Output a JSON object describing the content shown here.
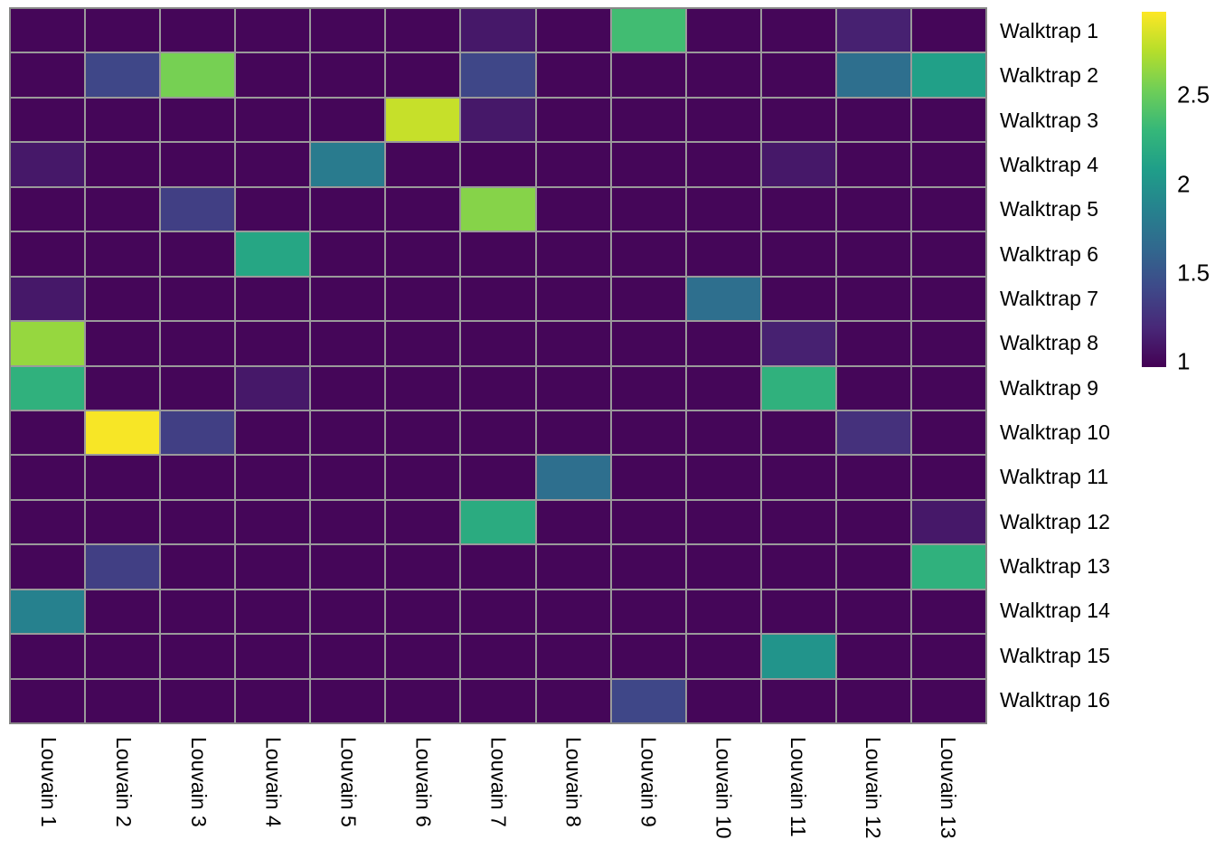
{
  "chart_data": {
    "type": "heatmap",
    "title": "",
    "xlabel": "",
    "ylabel": "",
    "x_axis_labels": [
      "Louvain 1",
      "Louvain 2",
      "Louvain 3",
      "Louvain 4",
      "Louvain 5",
      "Louvain 6",
      "Louvain 7",
      "Louvain 8",
      "Louvain 9",
      "Louvain 10",
      "Louvain 11",
      "Louvain 12",
      "Louvain 13"
    ],
    "y_axis_labels": [
      "Walktrap 1",
      "Walktrap 2",
      "Walktrap 3",
      "Walktrap 4",
      "Walktrap 5",
      "Walktrap 6",
      "Walktrap 7",
      "Walktrap 8",
      "Walktrap 9",
      "Walktrap 10",
      "Walktrap 11",
      "Walktrap 12",
      "Walktrap 13",
      "Walktrap 14",
      "Walktrap 15",
      "Walktrap 16"
    ],
    "default_value": 1.0,
    "cells": [
      {
        "row": 1,
        "col": 7,
        "value": 1.1
      },
      {
        "row": 1,
        "col": 9,
        "value": 2.35
      },
      {
        "row": 1,
        "col": 12,
        "value": 1.15
      },
      {
        "row": 2,
        "col": 2,
        "value": 1.4
      },
      {
        "row": 2,
        "col": 3,
        "value": 2.55
      },
      {
        "row": 2,
        "col": 7,
        "value": 1.4
      },
      {
        "row": 2,
        "col": 12,
        "value": 1.7
      },
      {
        "row": 2,
        "col": 13,
        "value": 2.1
      },
      {
        "row": 3,
        "col": 6,
        "value": 2.8
      },
      {
        "row": 3,
        "col": 7,
        "value": 1.1
      },
      {
        "row": 4,
        "col": 1,
        "value": 1.1
      },
      {
        "row": 4,
        "col": 5,
        "value": 1.8
      },
      {
        "row": 4,
        "col": 11,
        "value": 1.1
      },
      {
        "row": 5,
        "col": 3,
        "value": 1.35
      },
      {
        "row": 5,
        "col": 7,
        "value": 2.6
      },
      {
        "row": 6,
        "col": 4,
        "value": 2.15
      },
      {
        "row": 7,
        "col": 1,
        "value": 1.1
      },
      {
        "row": 7,
        "col": 10,
        "value": 1.7
      },
      {
        "row": 8,
        "col": 1,
        "value": 2.65
      },
      {
        "row": 8,
        "col": 11,
        "value": 1.15
      },
      {
        "row": 9,
        "col": 1,
        "value": 2.25
      },
      {
        "row": 9,
        "col": 4,
        "value": 1.1
      },
      {
        "row": 9,
        "col": 11,
        "value": 2.25
      },
      {
        "row": 10,
        "col": 2,
        "value": 2.95
      },
      {
        "row": 10,
        "col": 3,
        "value": 1.35
      },
      {
        "row": 10,
        "col": 12,
        "value": 1.25
      },
      {
        "row": 11,
        "col": 8,
        "value": 1.7
      },
      {
        "row": 12,
        "col": 7,
        "value": 2.2
      },
      {
        "row": 12,
        "col": 13,
        "value": 1.1
      },
      {
        "row": 13,
        "col": 2,
        "value": 1.35
      },
      {
        "row": 13,
        "col": 13,
        "value": 2.25
      },
      {
        "row": 14,
        "col": 1,
        "value": 1.85
      },
      {
        "row": 15,
        "col": 11,
        "value": 2.0
      },
      {
        "row": 16,
        "col": 9,
        "value": 1.4
      }
    ],
    "value_scale": {
      "palette": "viridis",
      "domain": [
        0.97,
        2.97
      ],
      "colors": [
        "#440154",
        "#482878",
        "#3e4989",
        "#31688e",
        "#26828e",
        "#1f9e89",
        "#35b779",
        "#6ece58",
        "#b5de2b",
        "#fde725"
      ]
    },
    "colorbar": {
      "position": "right",
      "ticks": [
        {
          "value": 1,
          "label": "1"
        },
        {
          "value": 1.5,
          "label": "1.5"
        },
        {
          "value": 2,
          "label": "2"
        },
        {
          "value": 2.5,
          "label": "2.5"
        }
      ]
    },
    "grid": {
      "line_color": "#9a9a9a",
      "border_color": "#878787",
      "background": "#ffffff"
    },
    "legend_position": "right"
  }
}
